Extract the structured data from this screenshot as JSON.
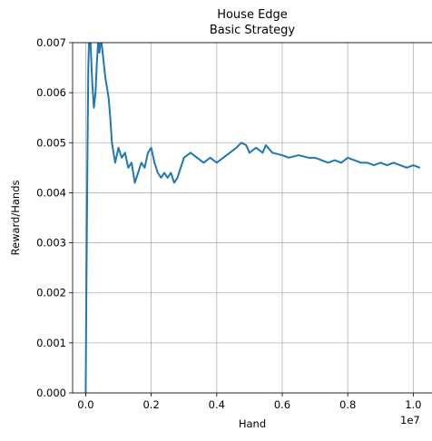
{
  "chart_data": {
    "type": "line",
    "title": "House Edge",
    "subtitle": "Basic Strategy",
    "xlabel": "Hand",
    "ylabel": "Reward/Hands",
    "x_offset_label": "1e7",
    "xlim": [
      -400000,
      10600000
    ],
    "ylim": [
      0.0,
      0.007
    ],
    "grid": true,
    "x_ticks": [
      0,
      2000000,
      4000000,
      6000000,
      8000000,
      10000000
    ],
    "x_tick_labels": [
      "0.0",
      "0.2",
      "0.4",
      "0.6",
      "0.8",
      "1.0"
    ],
    "y_ticks": [
      0.0,
      0.001,
      0.002,
      0.003,
      0.004,
      0.005,
      0.006,
      0.007
    ],
    "y_tick_labels": [
      "0.000",
      "0.001",
      "0.002",
      "0.003",
      "0.004",
      "0.005",
      "0.006",
      "0.007"
    ],
    "series": [
      {
        "color": "#1f77b4",
        "x": [
          0,
          20000,
          50000,
          80000,
          120000,
          160000,
          200000,
          250000,
          300000,
          340000,
          380000,
          420000,
          460000,
          500000,
          550000,
          600000,
          650000,
          700000,
          750000,
          800000,
          900000,
          1000000,
          1100000,
          1200000,
          1300000,
          1400000,
          1500000,
          1600000,
          1700000,
          1800000,
          1900000,
          2000000,
          2100000,
          2200000,
          2300000,
          2400000,
          2500000,
          2600000,
          2700000,
          2800000,
          2900000,
          3000000,
          3200000,
          3400000,
          3600000,
          3800000,
          4000000,
          4200000,
          4400000,
          4600000,
          4750000,
          4900000,
          5000000,
          5200000,
          5400000,
          5500000,
          5700000,
          6000000,
          6200000,
          6500000,
          6800000,
          7000000,
          7200000,
          7400000,
          7600000,
          7800000,
          8000000,
          8200000,
          8400000,
          8600000,
          8800000,
          9000000,
          9200000,
          9400000,
          9600000,
          9800000,
          10000000,
          10200000
        ],
        "y": [
          0.0,
          0.002,
          0.0045,
          0.0065,
          0.0075,
          0.0068,
          0.0062,
          0.0057,
          0.006,
          0.0066,
          0.007,
          0.0068,
          0.0071,
          0.0069,
          0.0066,
          0.0063,
          0.0061,
          0.0059,
          0.0055,
          0.005,
          0.0046,
          0.0049,
          0.0047,
          0.0048,
          0.0045,
          0.0046,
          0.0042,
          0.0044,
          0.0046,
          0.0045,
          0.0048,
          0.0049,
          0.0046,
          0.0044,
          0.0043,
          0.0044,
          0.0043,
          0.0044,
          0.0042,
          0.0043,
          0.0045,
          0.0047,
          0.0048,
          0.0047,
          0.0046,
          0.0047,
          0.0046,
          0.0047,
          0.0048,
          0.0049,
          0.005,
          0.00495,
          0.0048,
          0.0049,
          0.0048,
          0.00495,
          0.0048,
          0.00475,
          0.0047,
          0.00475,
          0.0047,
          0.0047,
          0.00465,
          0.0046,
          0.00465,
          0.0046,
          0.0047,
          0.00465,
          0.0046,
          0.0046,
          0.00455,
          0.0046,
          0.00455,
          0.0046,
          0.00455,
          0.0045,
          0.00455,
          0.0045
        ]
      }
    ]
  }
}
